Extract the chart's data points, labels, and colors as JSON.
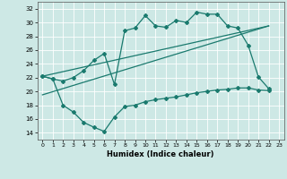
{
  "bg_color": "#cde8e5",
  "grid_color": "#b0d4d0",
  "line_color": "#1a7a6e",
  "xlabel": "Humidex (Indice chaleur)",
  "xlim": [
    -0.5,
    23.5
  ],
  "ylim": [
    13,
    33
  ],
  "yticks": [
    14,
    16,
    18,
    20,
    22,
    24,
    26,
    28,
    30,
    32
  ],
  "xticks": [
    0,
    1,
    2,
    3,
    4,
    5,
    6,
    7,
    8,
    9,
    10,
    11,
    12,
    13,
    14,
    15,
    16,
    17,
    18,
    19,
    20,
    21,
    22,
    23
  ],
  "line1_x": [
    0,
    1,
    2,
    3,
    4,
    5,
    6,
    7,
    8,
    9,
    10,
    11,
    12,
    13,
    14,
    15,
    16,
    17,
    18,
    19,
    20,
    21,
    22
  ],
  "line1_y": [
    22.2,
    21.8,
    18.0,
    17.0,
    15.5,
    14.8,
    14.2,
    16.3,
    17.8,
    18.0,
    18.5,
    18.8,
    19.0,
    19.2,
    19.5,
    19.8,
    20.0,
    20.2,
    20.3,
    20.5,
    20.5,
    20.2,
    20.1
  ],
  "line2_x": [
    0,
    1,
    2,
    3,
    4,
    5,
    6,
    7,
    8,
    9,
    10,
    11,
    12,
    13,
    14,
    15,
    16,
    17,
    18,
    19,
    20,
    21,
    22
  ],
  "line2_y": [
    22.2,
    21.8,
    21.5,
    22.0,
    23.0,
    24.5,
    25.5,
    21.0,
    28.8,
    29.2,
    31.0,
    29.5,
    29.3,
    30.3,
    30.0,
    31.5,
    31.2,
    31.2,
    29.5,
    29.2,
    26.7,
    22.1,
    20.4
  ],
  "line3_x": [
    0,
    22
  ],
  "line3_y": [
    19.5,
    29.5
  ],
  "line4_x": [
    0,
    22
  ],
  "line4_y": [
    22.2,
    29.5
  ]
}
